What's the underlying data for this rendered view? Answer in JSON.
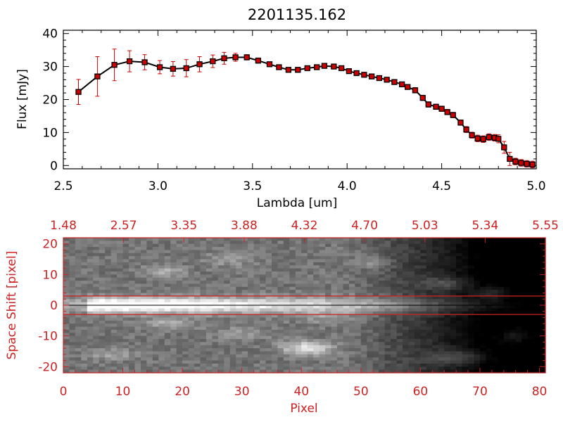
{
  "chart_data": [
    {
      "type": "line",
      "title": "2201135.162",
      "xlabel": "Lambda [um]",
      "ylabel": "Flux [mJy]",
      "xlim": [
        2.5,
        5.0
      ],
      "ylim": [
        -1,
        41
      ],
      "x_ticks": [
        "2.5",
        "3.0",
        "3.5",
        "4.0",
        "4.5",
        "5.0"
      ],
      "y_ticks": [
        "0",
        "10",
        "20",
        "30",
        "40"
      ],
      "grid": false,
      "series": [
        {
          "line_color": "#000000",
          "marker_color": "#cc0000",
          "errorbar_color": "#cc0000",
          "x": [
            2.58,
            2.68,
            2.77,
            2.85,
            2.93,
            3.01,
            3.08,
            3.15,
            3.22,
            3.29,
            3.35,
            3.41,
            3.47,
            3.53,
            3.59,
            3.64,
            3.69,
            3.74,
            3.79,
            3.84,
            3.88,
            3.93,
            3.97,
            4.01,
            4.05,
            4.09,
            4.13,
            4.17,
            4.21,
            4.25,
            4.29,
            4.32,
            4.36,
            4.4,
            4.43,
            4.47,
            4.5,
            4.53,
            4.56,
            4.6,
            4.63,
            4.66,
            4.69,
            4.72,
            4.75,
            4.78,
            4.8,
            4.83,
            4.86,
            4.89,
            4.92,
            4.95,
            4.98
          ],
          "y": [
            22.3,
            27.0,
            30.5,
            31.6,
            31.3,
            29.8,
            29.3,
            29.5,
            30.7,
            31.6,
            32.5,
            32.8,
            32.8,
            31.8,
            30.7,
            29.8,
            29.0,
            29.0,
            29.5,
            29.8,
            30.2,
            30.0,
            29.5,
            28.6,
            28.0,
            27.5,
            27.0,
            26.5,
            26.0,
            25.3,
            24.6,
            23.8,
            22.8,
            20.5,
            18.5,
            17.8,
            17.2,
            16.2,
            15.3,
            13.0,
            10.9,
            9.2,
            8.2,
            8.0,
            8.6,
            8.4,
            8.1,
            5.5,
            2.0,
            1.2,
            0.8,
            0.5,
            0.3
          ],
          "yerr": [
            3.8,
            6.0,
            4.8,
            3.2,
            2.3,
            2.0,
            2.2,
            2.6,
            2.3,
            1.9,
            1.8,
            1.2,
            0.8,
            0.8,
            0.7,
            0.7,
            0.7,
            0.7,
            0.7,
            0.6,
            0.6,
            0.6,
            0.6,
            0.6,
            0.6,
            0.6,
            0.6,
            0.6,
            0.7,
            0.7,
            0.7,
            0.7,
            0.8,
            0.8,
            0.8,
            0.8,
            0.8,
            0.8,
            0.8,
            0.8,
            0.9,
            0.9,
            1.0,
            1.0,
            1.0,
            1.0,
            1.2,
            1.8,
            2.0,
            1.0,
            1.0,
            1.0,
            1.0
          ]
        }
      ]
    },
    {
      "type": "heatmap",
      "xlabel": "Pixel",
      "ylabel": "Space Shift [pixel]",
      "xlim": [
        0,
        81
      ],
      "ylim": [
        -22,
        22
      ],
      "x_ticks": [
        "0",
        "10",
        "20",
        "30",
        "40",
        "50",
        "60",
        "70",
        "80"
      ],
      "y_ticks": [
        "-20",
        "-10",
        "0",
        "10",
        "20"
      ],
      "top_axis_ticks": [
        "1.48",
        "2.57",
        "3.35",
        "3.88",
        "4.32",
        "4.70",
        "5.03",
        "5.34",
        "5.55"
      ],
      "colormap": "grayscale",
      "axis_color": "#cc2222",
      "extraction_window": [
        -3,
        3
      ],
      "trace_center": 0,
      "grid": false
    }
  ]
}
